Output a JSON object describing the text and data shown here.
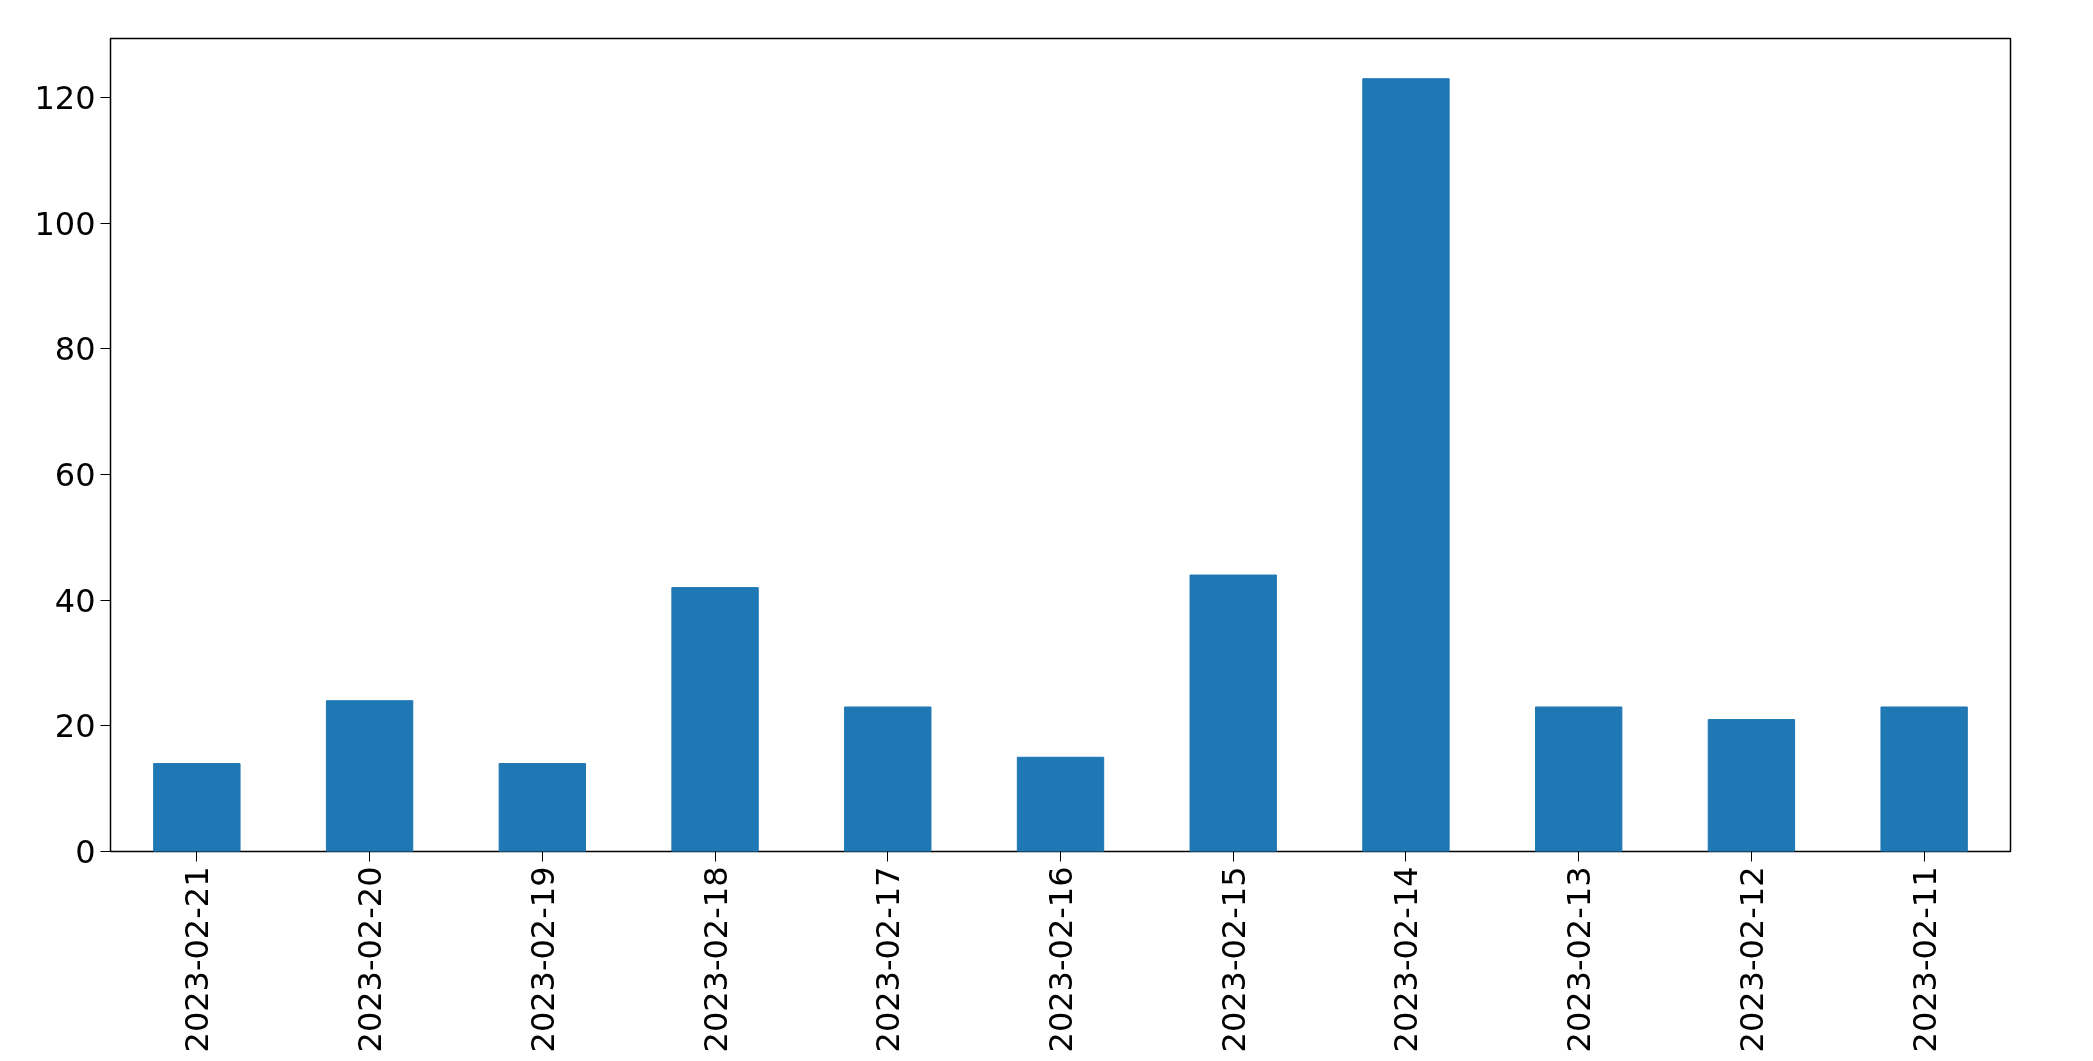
{
  "chart_data": {
    "type": "bar",
    "categories": [
      "2023-02-21",
      "2023-02-20",
      "2023-02-19",
      "2023-02-18",
      "2023-02-17",
      "2023-02-16",
      "2023-02-15",
      "2023-02-14",
      "2023-02-13",
      "2023-02-12",
      "2023-02-11"
    ],
    "values": [
      14,
      24,
      14,
      42,
      23,
      15,
      44,
      123,
      23,
      21,
      23
    ],
    "color": "#1f77b4",
    "ylim": [
      0,
      129.4
    ],
    "yticks": [
      0,
      20,
      40,
      60,
      80,
      100,
      120
    ],
    "grid": false
  }
}
